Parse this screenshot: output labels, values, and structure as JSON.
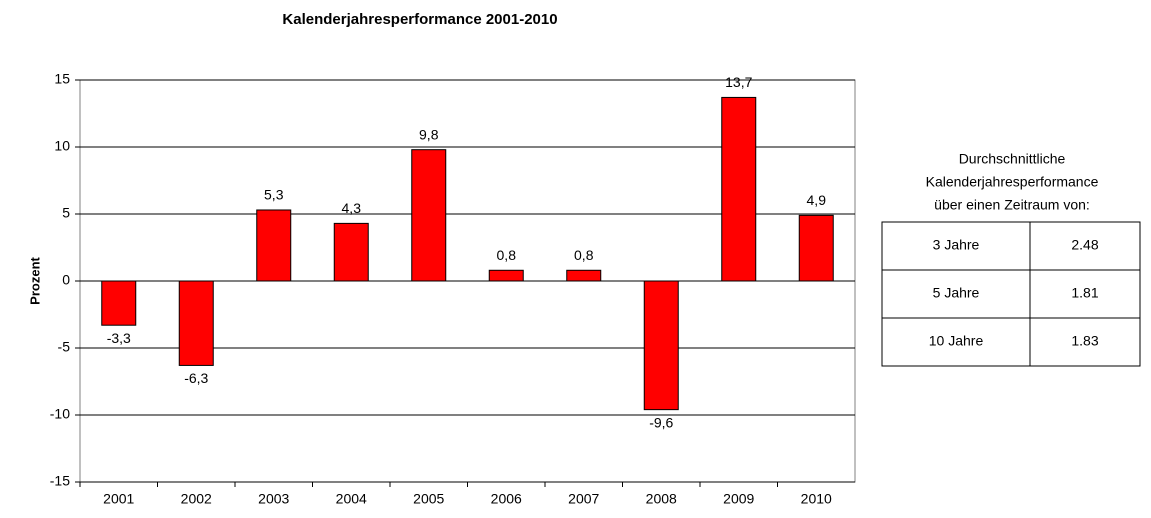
{
  "chart_data": {
    "type": "bar",
    "title": "Kalenderjahresperformance 2001-2010",
    "ylabel": "Prozent",
    "categories": [
      "2001",
      "2002",
      "2003",
      "2004",
      "2005",
      "2006",
      "2007",
      "2008",
      "2009",
      "2010"
    ],
    "values": [
      -3.3,
      -6.3,
      5.3,
      4.3,
      9.8,
      0.8,
      0.8,
      -9.6,
      13.7,
      4.9
    ],
    "value_labels": [
      "-3,3",
      "-6,3",
      "5,3",
      "4,3",
      "9,8",
      "0,8",
      "0,8",
      "-9,6",
      "13,7",
      "4,9"
    ],
    "color": "#ff0000",
    "ylim": [
      -15,
      15
    ],
    "yticks": [
      -15,
      -10,
      -5,
      0,
      5,
      10,
      15
    ],
    "grid": true
  },
  "side_table": {
    "title_lines": [
      "Durchschnittliche",
      "Kalenderjahresperformance",
      "über einen Zeitraum von:"
    ],
    "rows": [
      [
        "3 Jahre",
        2.48
      ],
      [
        "5 Jahre",
        1.81
      ],
      [
        "10 Jahre",
        1.83
      ]
    ]
  }
}
